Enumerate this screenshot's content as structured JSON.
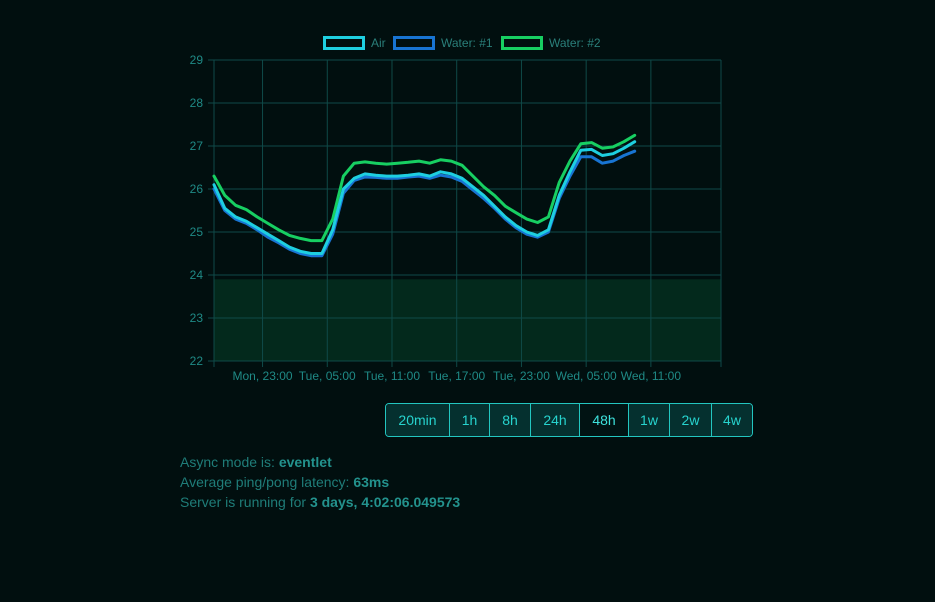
{
  "chart_data": {
    "type": "line",
    "legend_position": "top-center",
    "grid": true,
    "ylim": [
      22,
      29
    ],
    "yticks": [
      22,
      23,
      24,
      25,
      26,
      27,
      28,
      29
    ],
    "x_tick_labels": [
      "Mon, 23:00",
      "Tue, 05:00",
      "Tue, 11:00",
      "Tue, 17:00",
      "Tue, 23:00",
      "Wed, 05:00",
      "Wed, 11:00"
    ],
    "x_tick_hours": [
      4.5,
      10.5,
      16.5,
      22.5,
      28.5,
      34.5,
      40.5
    ],
    "x_range_hours": [
      0,
      47
    ],
    "band": {
      "from": 22,
      "to": 23.9,
      "color": "#03291c"
    },
    "series": [
      {
        "name": "Air",
        "color": "#1ecfe0",
        "points": [
          [
            0,
            26.1
          ],
          [
            1,
            25.55
          ],
          [
            2,
            25.35
          ],
          [
            3,
            25.25
          ],
          [
            4,
            25.1
          ],
          [
            5,
            24.95
          ],
          [
            6,
            24.8
          ],
          [
            7,
            24.65
          ],
          [
            8,
            24.55
          ],
          [
            9,
            24.5
          ],
          [
            10,
            24.5
          ],
          [
            11,
            25.05
          ],
          [
            12,
            26.0
          ],
          [
            13,
            26.25
          ],
          [
            14,
            26.35
          ],
          [
            15,
            26.32
          ],
          [
            16,
            26.3
          ],
          [
            17,
            26.3
          ],
          [
            18,
            26.32
          ],
          [
            19,
            26.35
          ],
          [
            20,
            26.3
          ],
          [
            21,
            26.4
          ],
          [
            22,
            26.35
          ],
          [
            23,
            26.25
          ],
          [
            24,
            26.05
          ],
          [
            25,
            25.85
          ],
          [
            26,
            25.6
          ],
          [
            27,
            25.35
          ],
          [
            28,
            25.15
          ],
          [
            29,
            25.0
          ],
          [
            30,
            24.92
          ],
          [
            31,
            25.05
          ],
          [
            32,
            25.85
          ],
          [
            33,
            26.4
          ],
          [
            34,
            26.9
          ],
          [
            35,
            26.92
          ],
          [
            36,
            26.78
          ],
          [
            37,
            26.82
          ],
          [
            38,
            26.95
          ],
          [
            39,
            27.1
          ]
        ]
      },
      {
        "name": "Water: #1",
        "color": "#1874d2",
        "points": [
          [
            0,
            26.0
          ],
          [
            1,
            25.5
          ],
          [
            2,
            25.3
          ],
          [
            3,
            25.2
          ],
          [
            4,
            25.05
          ],
          [
            5,
            24.88
          ],
          [
            6,
            24.75
          ],
          [
            7,
            24.6
          ],
          [
            8,
            24.5
          ],
          [
            9,
            24.45
          ],
          [
            10,
            24.45
          ],
          [
            11,
            24.95
          ],
          [
            12,
            25.9
          ],
          [
            13,
            26.2
          ],
          [
            14,
            26.28
          ],
          [
            15,
            26.27
          ],
          [
            16,
            26.25
          ],
          [
            17,
            26.25
          ],
          [
            18,
            26.28
          ],
          [
            19,
            26.3
          ],
          [
            20,
            26.25
          ],
          [
            21,
            26.32
          ],
          [
            22,
            26.28
          ],
          [
            23,
            26.18
          ],
          [
            24,
            25.98
          ],
          [
            25,
            25.78
          ],
          [
            26,
            25.55
          ],
          [
            27,
            25.3
          ],
          [
            28,
            25.1
          ],
          [
            29,
            24.95
          ],
          [
            30,
            24.88
          ],
          [
            31,
            25.0
          ],
          [
            32,
            25.78
          ],
          [
            33,
            26.3
          ],
          [
            34,
            26.75
          ],
          [
            35,
            26.75
          ],
          [
            36,
            26.6
          ],
          [
            37,
            26.65
          ],
          [
            38,
            26.78
          ],
          [
            39,
            26.88
          ]
        ]
      },
      {
        "name": "Water: #2",
        "color": "#17cf62",
        "points": [
          [
            0,
            26.3
          ],
          [
            1,
            25.85
          ],
          [
            2,
            25.62
          ],
          [
            3,
            25.52
          ],
          [
            4,
            25.35
          ],
          [
            5,
            25.2
          ],
          [
            6,
            25.05
          ],
          [
            7,
            24.92
          ],
          [
            8,
            24.85
          ],
          [
            9,
            24.8
          ],
          [
            10,
            24.8
          ],
          [
            11,
            25.3
          ],
          [
            12,
            26.3
          ],
          [
            13,
            26.6
          ],
          [
            14,
            26.63
          ],
          [
            15,
            26.6
          ],
          [
            16,
            26.58
          ],
          [
            17,
            26.6
          ],
          [
            18,
            26.62
          ],
          [
            19,
            26.65
          ],
          [
            20,
            26.6
          ],
          [
            21,
            26.68
          ],
          [
            22,
            26.65
          ],
          [
            23,
            26.55
          ],
          [
            24,
            26.3
          ],
          [
            25,
            26.05
          ],
          [
            26,
            25.85
          ],
          [
            27,
            25.6
          ],
          [
            28,
            25.45
          ],
          [
            29,
            25.3
          ],
          [
            30,
            25.22
          ],
          [
            31,
            25.35
          ],
          [
            32,
            26.15
          ],
          [
            33,
            26.65
          ],
          [
            34,
            27.05
          ],
          [
            35,
            27.08
          ],
          [
            36,
            26.95
          ],
          [
            37,
            26.98
          ],
          [
            38,
            27.1
          ],
          [
            39,
            27.25
          ]
        ]
      }
    ]
  },
  "range_buttons": [
    {
      "label": "20min",
      "active": false
    },
    {
      "label": "1h",
      "active": false
    },
    {
      "label": "8h",
      "active": false
    },
    {
      "label": "24h",
      "active": false
    },
    {
      "label": "48h",
      "active": true
    },
    {
      "label": "1w",
      "active": false
    },
    {
      "label": "2w",
      "active": false
    },
    {
      "label": "4w",
      "active": false
    }
  ],
  "info": {
    "async_label": "Async mode is: ",
    "async_value": "eventlet",
    "latency_label": "Average ping/pong latency: ",
    "latency_value": "63ms",
    "uptime_label": "Server is running for ",
    "uptime_value": "3 days, 4:02:06.049573"
  }
}
